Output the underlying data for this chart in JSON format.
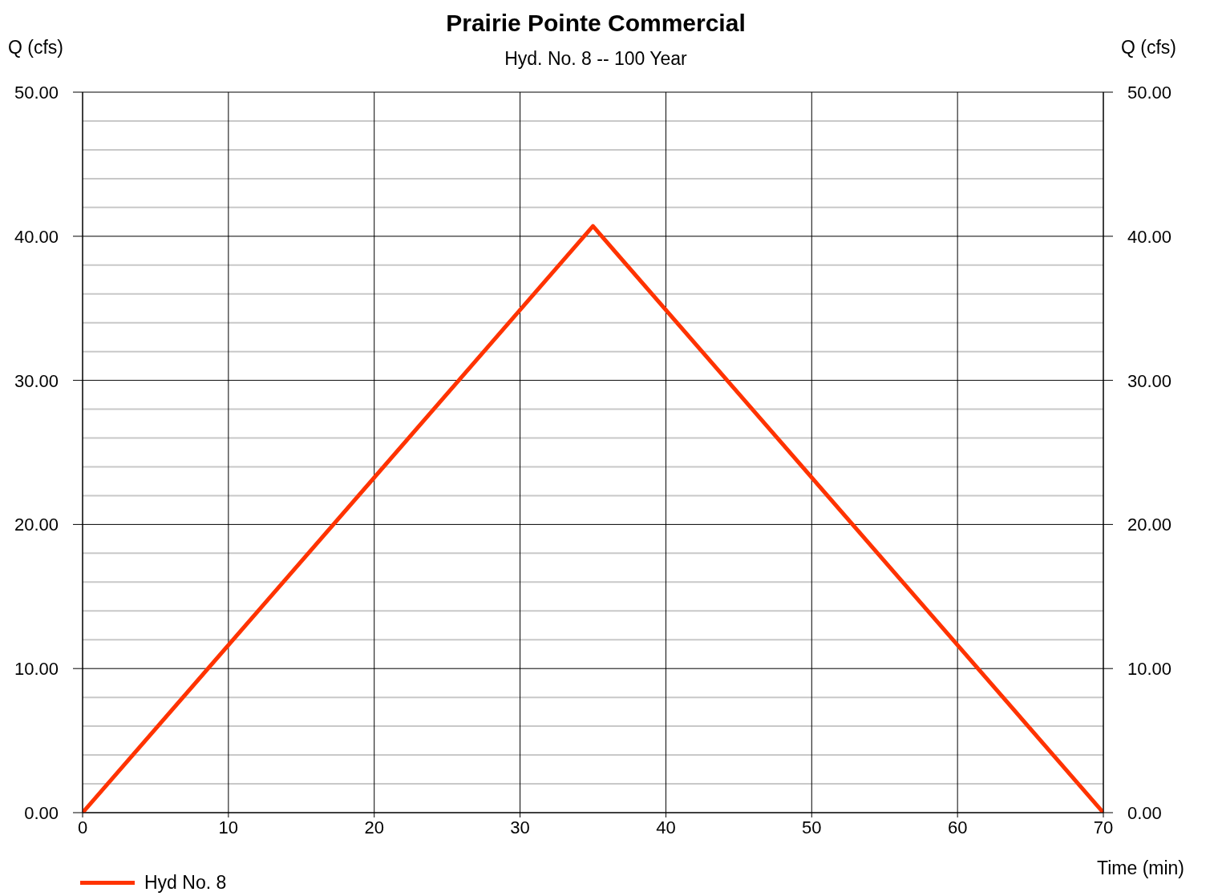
{
  "chart_data": {
    "type": "line",
    "title": "Prairie Pointe Commercial",
    "subtitle": "Hyd. No. 8 -- 100 Year",
    "xlabel": "Time (min)",
    "ylabel": "Q (cfs)",
    "y2label": "Q (cfs)",
    "x": [
      0,
      35,
      70
    ],
    "series": [
      {
        "name": "Hyd No. 8",
        "color": "#ff3300",
        "values": [
          0,
          40.7,
          0
        ]
      }
    ],
    "xlim": [
      0,
      70
    ],
    "xticks": [
      0,
      10,
      20,
      30,
      40,
      50,
      60,
      70
    ],
    "ylim": [
      0,
      50
    ],
    "yticks": [
      {
        "value": 0,
        "label": "0.00"
      },
      {
        "value": 2,
        "label": null
      },
      {
        "value": 4,
        "label": null
      },
      {
        "value": 6,
        "label": null
      },
      {
        "value": 8,
        "label": null
      },
      {
        "value": 10,
        "label": "10.00"
      },
      {
        "value": 12,
        "label": null
      },
      {
        "value": 14,
        "label": null
      },
      {
        "value": 16,
        "label": null
      },
      {
        "value": 18,
        "label": null
      },
      {
        "value": 20,
        "label": "20.00"
      },
      {
        "value": 22,
        "label": null
      },
      {
        "value": 24,
        "label": null
      },
      {
        "value": 26,
        "label": null
      },
      {
        "value": 28,
        "label": null
      },
      {
        "value": 30,
        "label": "30.00"
      },
      {
        "value": 32,
        "label": null
      },
      {
        "value": 34,
        "label": null
      },
      {
        "value": 36,
        "label": null
      },
      {
        "value": 38,
        "label": null
      },
      {
        "value": 40,
        "label": "40.00"
      },
      {
        "value": 42,
        "label": null
      },
      {
        "value": 44,
        "label": null
      },
      {
        "value": 46,
        "label": null
      },
      {
        "value": 48,
        "label": null
      },
      {
        "value": 50,
        "label": "50.00"
      }
    ],
    "y2lim": [
      0,
      50
    ],
    "y2ticks": [
      {
        "value": 0,
        "label": "0.00"
      },
      {
        "value": 10,
        "label": "10.00"
      },
      {
        "value": 20,
        "label": "20.00"
      },
      {
        "value": 30,
        "label": "30.00"
      },
      {
        "value": 40,
        "label": "40.00"
      },
      {
        "value": 50,
        "label": "50.00"
      }
    ],
    "grid": true,
    "legend": "bottom",
    "marker": "none",
    "line_style": "solid"
  }
}
